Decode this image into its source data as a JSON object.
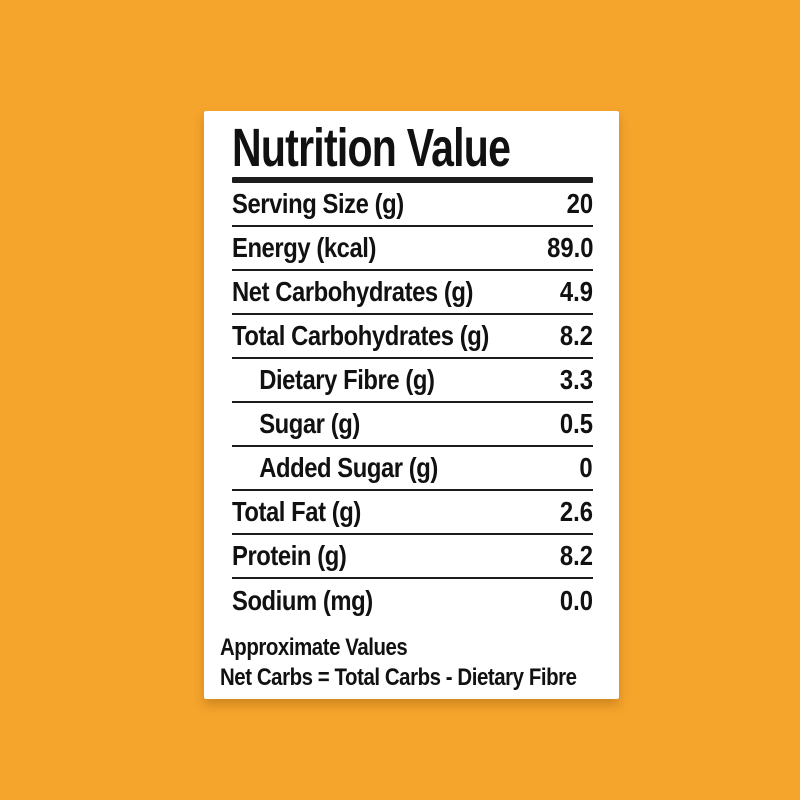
{
  "colors": {
    "background": "#F5A42C",
    "card_background": "#FFFFFF",
    "text": "#111111",
    "divider": "#1c1c1c"
  },
  "header": {
    "title": "Nutrition Value"
  },
  "table": {
    "rows": [
      {
        "label": "Serving Size (g)",
        "value": "20",
        "indent": false
      },
      {
        "label": "Energy (kcal)",
        "value": "89.0",
        "indent": false
      },
      {
        "label": "Net Carbohydrates (g)",
        "value": "4.9",
        "indent": false
      },
      {
        "label": "Total Carbohydrates (g)",
        "value": "8.2",
        "indent": false
      },
      {
        "label": "Dietary Fibre (g)",
        "value": "3.3",
        "indent": true
      },
      {
        "label": "Sugar (g)",
        "value": "0.5",
        "indent": true
      },
      {
        "label": "Added Sugar (g)",
        "value": "0",
        "indent": true
      },
      {
        "label": "Total Fat (g)",
        "value": "2.6",
        "indent": false
      },
      {
        "label": "Protein (g)",
        "value": "8.2",
        "indent": false
      },
      {
        "label": "Sodium (mg)",
        "value": "0.0",
        "indent": false
      }
    ]
  },
  "footer": {
    "line1": "Approximate Values",
    "line2": "Net Carbs = Total Carbs - Dietary Fibre"
  }
}
